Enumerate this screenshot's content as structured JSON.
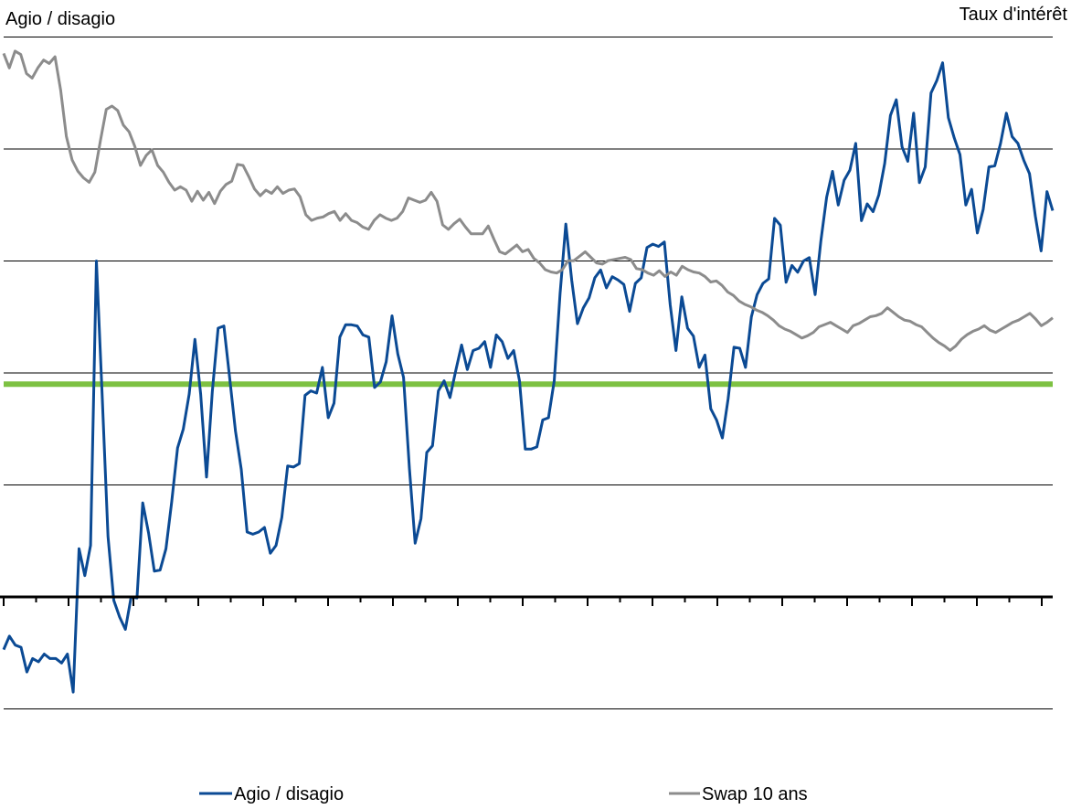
{
  "chart_data": {
    "type": "line",
    "title": "",
    "ylabel_left": "Agio / disagio",
    "ylabel_right": "Taux d'intérêt",
    "grid": true,
    "legend_position": "bottom",
    "colors": {
      "agio": "#0b4a94",
      "swap": "#8c8c8c",
      "threshold": "#7dc142",
      "axis": "#000000",
      "grid": "#000000"
    },
    "threshold_value": 1.9,
    "ylim_left": [
      -1,
      5
    ],
    "ylim_right": [
      0,
      5
    ],
    "series": [
      {
        "name": "Agio / disagio",
        "key": "agio",
        "values": [
          -0.47,
          -0.35,
          -0.43,
          -0.45,
          -0.67,
          -0.55,
          -0.58,
          -0.51,
          -0.55,
          -0.55,
          -0.59,
          -0.51,
          -0.85,
          0.43,
          0.19,
          0.46,
          3.0,
          1.8,
          0.54,
          -0.03,
          -0.18,
          -0.29,
          0.0,
          -0.01,
          0.84,
          0.57,
          0.23,
          0.24,
          0.43,
          0.85,
          1.33,
          1.5,
          1.81,
          2.3,
          1.81,
          1.07,
          1.83,
          2.4,
          2.42,
          1.95,
          1.48,
          1.14,
          0.58,
          0.56,
          0.58,
          0.62,
          0.39,
          0.46,
          0.71,
          1.17,
          1.16,
          1.19,
          1.8,
          1.84,
          1.82,
          2.05,
          1.6,
          1.73,
          2.32,
          2.43,
          2.43,
          2.42,
          2.34,
          2.32,
          1.87,
          1.92,
          2.1,
          2.51,
          2.17,
          1.96,
          1.15,
          0.48,
          0.7,
          1.29,
          1.35,
          1.84,
          1.93,
          1.78,
          2.02,
          2.25,
          2.03,
          2.2,
          2.22,
          2.28,
          2.05,
          2.34,
          2.28,
          2.13,
          2.2,
          1.93,
          1.32,
          1.32,
          1.34,
          1.58,
          1.6,
          1.93,
          2.71,
          3.33,
          2.83,
          2.44,
          2.58,
          2.67,
          2.85,
          2.92,
          2.76,
          2.86,
          2.83,
          2.79,
          2.55,
          2.8,
          2.85,
          3.12,
          3.15,
          3.13,
          3.17,
          2.61,
          2.2,
          2.68,
          2.4,
          2.33,
          2.05,
          2.16,
          1.68,
          1.58,
          1.42,
          1.77,
          2.23,
          2.22,
          2.05,
          2.5,
          2.7,
          2.8,
          2.84,
          3.38,
          3.32,
          2.81,
          2.96,
          2.9,
          3.0,
          3.03,
          2.7,
          3.18,
          3.57,
          3.8,
          3.5,
          3.72,
          3.81,
          4.05,
          3.36,
          3.51,
          3.44,
          3.59,
          3.87,
          4.3,
          4.44,
          4.02,
          3.89,
          4.32,
          3.7,
          3.84,
          4.5,
          4.61,
          4.77,
          4.28,
          4.1,
          3.95,
          3.5,
          3.64,
          3.25,
          3.46,
          3.84,
          3.85,
          4.05,
          4.32,
          4.11,
          4.05,
          3.9,
          3.78,
          3.4,
          3.09,
          3.62,
          3.45
        ]
      },
      {
        "name": "Swap 10 ans",
        "key": "swap",
        "values": [
          4.85,
          4.72,
          4.87,
          4.84,
          4.67,
          4.63,
          4.72,
          4.79,
          4.76,
          4.82,
          4.52,
          4.11,
          3.9,
          3.8,
          3.74,
          3.7,
          3.79,
          4.08,
          4.35,
          4.38,
          4.34,
          4.21,
          4.15,
          4.02,
          3.85,
          3.94,
          3.99,
          3.85,
          3.79,
          3.7,
          3.63,
          3.66,
          3.63,
          3.53,
          3.62,
          3.54,
          3.61,
          3.51,
          3.62,
          3.68,
          3.71,
          3.86,
          3.85,
          3.75,
          3.64,
          3.58,
          3.63,
          3.6,
          3.66,
          3.6,
          3.63,
          3.64,
          3.57,
          3.41,
          3.36,
          3.38,
          3.39,
          3.42,
          3.44,
          3.36,
          3.42,
          3.36,
          3.34,
          3.3,
          3.28,
          3.36,
          3.41,
          3.38,
          3.36,
          3.38,
          3.44,
          3.56,
          3.54,
          3.52,
          3.54,
          3.61,
          3.53,
          3.32,
          3.28,
          3.33,
          3.37,
          3.3,
          3.24,
          3.24,
          3.24,
          3.31,
          3.19,
          3.08,
          3.06,
          3.1,
          3.14,
          3.08,
          3.1,
          3.02,
          2.98,
          2.92,
          2.9,
          2.89,
          2.92,
          3.0,
          3.0,
          3.04,
          3.08,
          3.03,
          2.98,
          2.97,
          3.0,
          3.01,
          3.02,
          3.03,
          3.01,
          2.93,
          2.92,
          2.89,
          2.87,
          2.91,
          2.86,
          2.9,
          2.87,
          2.95,
          2.92,
          2.9,
          2.89,
          2.86,
          2.81,
          2.82,
          2.78,
          2.72,
          2.69,
          2.64,
          2.61,
          2.59,
          2.56,
          2.54,
          2.51,
          2.47,
          2.42,
          2.39,
          2.37,
          2.34,
          2.31,
          2.33,
          2.36,
          2.41,
          2.43,
          2.45,
          2.42,
          2.39,
          2.36,
          2.42,
          2.44,
          2.47,
          2.5,
          2.51,
          2.53,
          2.58,
          2.54,
          2.5,
          2.47,
          2.46,
          2.43,
          2.41,
          2.36,
          2.31,
          2.27,
          2.24,
          2.2,
          2.24,
          2.3,
          2.34,
          2.37,
          2.39,
          2.42,
          2.38,
          2.36,
          2.39,
          2.42,
          2.45,
          2.47,
          2.5,
          2.53,
          2.48,
          2.42,
          2.45,
          2.49
        ]
      }
    ]
  },
  "axes": {
    "left_title": "Agio / disagio",
    "right_title": "Taux d'intérêt"
  },
  "legend": [
    {
      "label": "Agio / disagio",
      "color": "#0b4a94"
    },
    {
      "label": "Swap 10 ans",
      "color": "#8c8c8c"
    }
  ]
}
